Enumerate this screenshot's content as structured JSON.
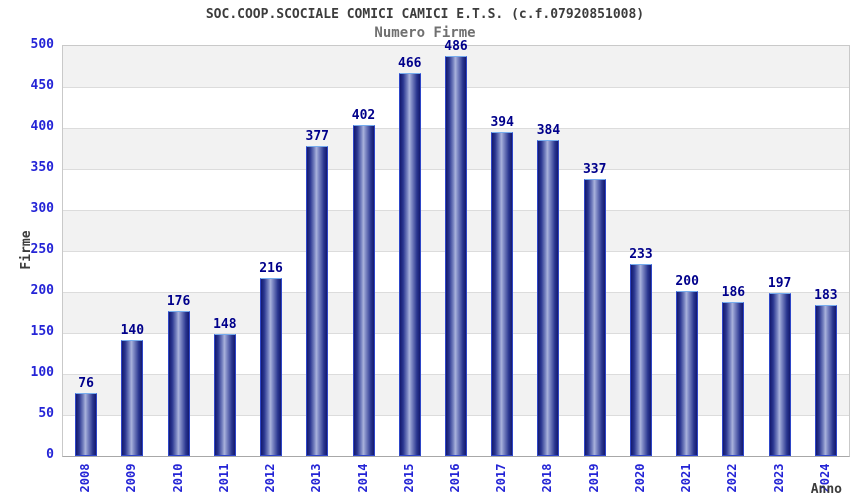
{
  "chart_data": {
    "type": "bar",
    "title": "SOC.COOP.SCOCIALE COMICI CAMICI E.T.S. (c.f.07920851008)",
    "subtitle": "Numero Firme",
    "xlabel": "Anno",
    "ylabel": "Firme",
    "categories": [
      "2008",
      "2009",
      "2010",
      "2011",
      "2012",
      "2013",
      "2014",
      "2015",
      "2016",
      "2017",
      "2018",
      "2019",
      "2020",
      "2021",
      "2022",
      "2023",
      "2024"
    ],
    "values": [
      76,
      140,
      176,
      148,
      216,
      377,
      402,
      466,
      486,
      394,
      384,
      337,
      233,
      200,
      186,
      197,
      183
    ],
    "yticks": [
      0,
      50,
      100,
      150,
      200,
      250,
      300,
      350,
      400,
      450,
      500
    ],
    "ylim": [
      0,
      500
    ],
    "grid": true,
    "band_fill": true,
    "legend": "none",
    "colors": {
      "bar_dark": "#141a6e",
      "bar_light": "#aab3dc",
      "bar_border": "#2e46c8",
      "bar_border_top": "#76acee",
      "tick_label": "#2424d6",
      "value_label": "#00008b",
      "band_gray": "#f2f2f2",
      "grid_line": "#dcdcdc",
      "title_color": "#3c3c3c"
    }
  }
}
